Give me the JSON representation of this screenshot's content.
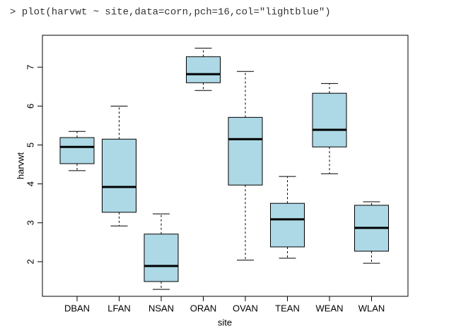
{
  "console": {
    "command": "> plot(harvwt ~ site,data=corn,pch=16,col=\"lightblue\")"
  },
  "chart_data": {
    "type": "box",
    "xlabel": "site",
    "ylabel": "harvwt",
    "color": "#add8e6",
    "categories": [
      "DBAN",
      "LFAN",
      "NSAN",
      "ORAN",
      "OVAN",
      "TEAN",
      "WEAN",
      "WLAN"
    ],
    "whisker_low": [
      4.34,
      2.92,
      1.29,
      6.4,
      2.04,
      2.09,
      4.26,
      1.96
    ],
    "q1": [
      4.52,
      3.27,
      1.49,
      6.6,
      3.97,
      2.38,
      4.95,
      2.27
    ],
    "median": [
      4.95,
      3.92,
      1.89,
      6.82,
      5.15,
      3.09,
      5.39,
      2.87
    ],
    "q3": [
      5.19,
      5.15,
      2.71,
      7.27,
      5.71,
      3.5,
      6.33,
      3.45
    ],
    "whisker_high": [
      5.35,
      6.0,
      3.23,
      7.49,
      6.89,
      4.19,
      6.58,
      3.54
    ],
    "ylim": [
      1.11,
      7.82
    ],
    "yticks": [
      2,
      3,
      4,
      5,
      6,
      7
    ]
  }
}
